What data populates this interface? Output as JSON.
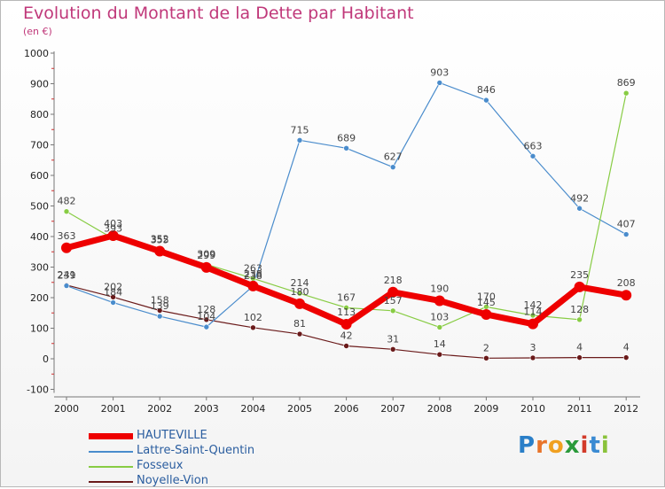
{
  "title": "Evolution du Montant de la Dette par Habitant",
  "subtitle": "(en €)",
  "logo": {
    "text": "Proxiti",
    "colors": [
      "#2a7fc8",
      "#e8742a",
      "#f0a020",
      "#2a9a3a",
      "#d23a2a",
      "#3a8ad2",
      "#8ac23a"
    ]
  },
  "chart_data": {
    "type": "line",
    "x": [
      "2000",
      "2001",
      "2002",
      "2003",
      "2004",
      "2005",
      "2006",
      "2007",
      "2008",
      "2009",
      "2010",
      "2011",
      "2012"
    ],
    "ylim": [
      -100,
      1000
    ],
    "yticks": [
      "-100",
      "0",
      "100",
      "200",
      "300",
      "400",
      "500",
      "600",
      "700",
      "800",
      "900",
      "1000"
    ],
    "grid": false,
    "legend_position": "bottom-left",
    "series": [
      {
        "name": "HAUTEVILLE",
        "color": "#ee0000",
        "values": [
          363,
          403,
          352,
          299,
          238,
          180,
          113,
          218,
          190,
          145,
          114,
          235,
          208
        ]
      },
      {
        "name": "Lattre-Saint-Quentin",
        "color": "#4a8ccc",
        "values": [
          239,
          184,
          139,
          104,
          238,
          715,
          689,
          627,
          903,
          846,
          663,
          492,
          407
        ]
      },
      {
        "name": "Fosseux",
        "color": "#88cc44",
        "values": [
          482,
          393,
          355,
          309,
          263,
          214,
          167,
          157,
          103,
          170,
          142,
          128,
          869
        ]
      },
      {
        "name": "Noyelle-Vion",
        "color": "#6a1a1a",
        "values": [
          241,
          202,
          158,
          128,
          102,
          81,
          42,
          31,
          14,
          2,
          3,
          4,
          4
        ]
      }
    ]
  }
}
